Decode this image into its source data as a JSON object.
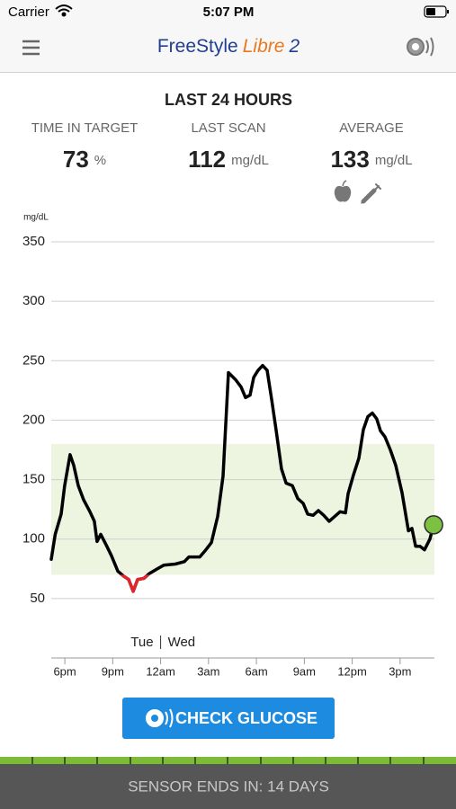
{
  "status_bar": {
    "carrier": "Carrier",
    "time": "5:07 PM"
  },
  "header": {
    "brand_1": "FreeStyle",
    "brand_2": "Libre",
    "brand_3": "2"
  },
  "summary": {
    "title": "LAST 24 HOURS",
    "stats": [
      {
        "label": "TIME IN TARGET",
        "value": 73,
        "unit": "%"
      },
      {
        "label": "LAST SCAN",
        "value": 112,
        "unit": "mg/dL"
      },
      {
        "label": "AVERAGE",
        "value": 133,
        "unit": "mg/dL"
      }
    ]
  },
  "chart_data": {
    "type": "line",
    "y_label": "mg/dL",
    "x": [
      17.15,
      17.4,
      17.77,
      17.99,
      18.33,
      18.56,
      18.84,
      19.18,
      19.57,
      19.85,
      20.02,
      20.25,
      20.59,
      20.92,
      21.32,
      21.66,
      22.0,
      22.28,
      22.56,
      22.95,
      23.29,
      23.8,
      24.19,
      24.92,
      25.49,
      25.77,
      26.45,
      26.78,
      27.18,
      27.57,
      27.91,
      28.25,
      28.7,
      29.04,
      29.32,
      29.6,
      29.83,
      30.11,
      30.39,
      30.67,
      30.96,
      31.24,
      31.57,
      31.86,
      32.25,
      32.59,
      32.93,
      33.21,
      33.55,
      33.88,
      34.22,
      34.56,
      34.9,
      35.24,
      35.58,
      35.74,
      36.08,
      36.42,
      36.7,
      36.98,
      37.26,
      37.54,
      37.77,
      38.05,
      38.39,
      38.73,
      39.12,
      39.52,
      39.74,
      39.97,
      40.25,
      40.53,
      40.87,
      41.1
    ],
    "values": [
      83,
      104,
      121,
      145,
      171,
      162,
      145,
      133,
      123,
      115,
      98,
      104,
      95,
      86,
      73,
      69,
      66,
      56,
      66,
      67,
      71,
      75,
      78,
      79,
      81,
      85,
      85,
      90,
      97,
      119,
      153,
      240,
      234,
      228,
      219,
      221,
      236,
      242,
      246,
      242,
      217,
      191,
      159,
      147,
      145,
      134,
      130,
      121,
      120,
      124,
      120,
      115,
      119,
      123,
      122,
      138,
      154,
      168,
      192,
      203,
      206,
      201,
      191,
      186,
      175,
      162,
      139,
      107,
      109,
      94,
      94,
      91,
      100,
      112
    ],
    "color": "#000000",
    "low_color": "#e0262b",
    "target_range": [
      70,
      180
    ],
    "target_color": "#edf4e0",
    "marker_color": "#7dc142",
    "xlim": [
      17.15,
      41.15
    ],
    "xticks": [
      {
        "value": 18,
        "label": "6pm"
      },
      {
        "value": 21,
        "label": "9pm"
      },
      {
        "value": 24,
        "label": "12am"
      },
      {
        "value": 27,
        "label": "3am"
      },
      {
        "value": 30,
        "label": "6am"
      },
      {
        "value": 33,
        "label": "9am"
      },
      {
        "value": 36,
        "label": "12pm"
      },
      {
        "value": 39,
        "label": "3pm"
      }
    ],
    "ylim": [
      0,
      350
    ],
    "yticks": [
      50,
      100,
      150,
      200,
      250,
      300,
      350
    ],
    "grid": true,
    "day_boundary": 24,
    "day_labels": [
      "Tue",
      "Wed"
    ]
  },
  "button": {
    "label": "CHECK GLUCOSE"
  },
  "footer": {
    "text": "SENSOR ENDS IN: 14 DAYS"
  }
}
